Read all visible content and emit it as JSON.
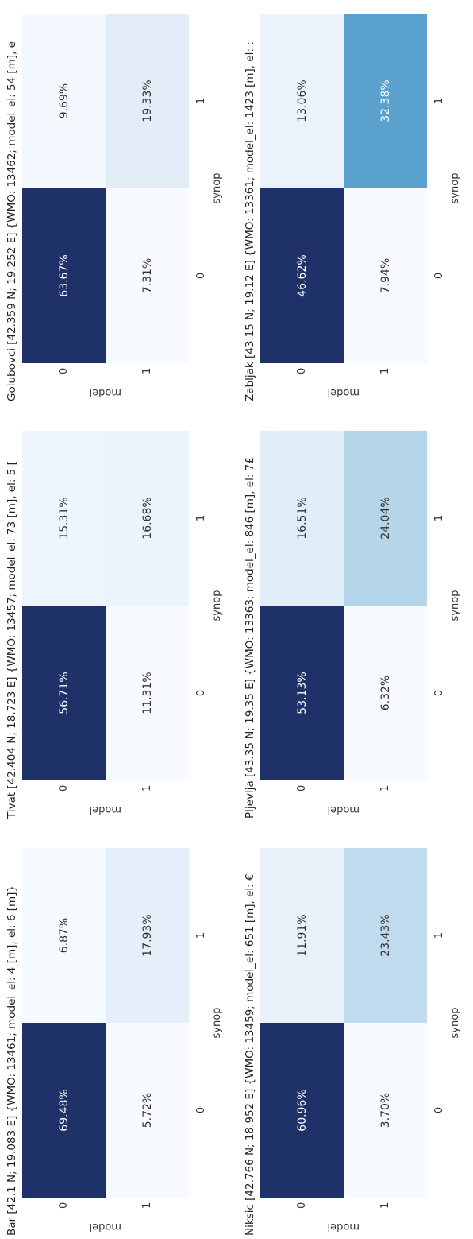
{
  "chart_data": [
    {
      "type": "heatmap",
      "title": "Bar  [42.1 N; 19.083 E]  {WMO: 13461; model_el: 4 [m], el: 6 [m]}",
      "xlabel": "synop",
      "ylabel": "model",
      "x_categories": [
        "0",
        "1"
      ],
      "y_categories": [
        "0",
        "1"
      ],
      "values": [
        [
          69.48,
          6.87
        ],
        [
          5.72,
          17.93
        ]
      ],
      "labels": [
        [
          "69.48%",
          "6.87%"
        ],
        [
          "5.72%",
          "17.93%"
        ]
      ]
    },
    {
      "type": "heatmap",
      "title": "Tivat  [42.404 N; 18.723 E]  {WMO: 13457; model_el: 73 [m], el: 5 [",
      "xlabel": "synop",
      "ylabel": "model",
      "x_categories": [
        "0",
        "1"
      ],
      "y_categories": [
        "0",
        "1"
      ],
      "values": [
        [
          56.71,
          15.31
        ],
        [
          11.31,
          16.68
        ]
      ],
      "labels": [
        [
          "56.71%",
          "15.31%"
        ],
        [
          "11.31%",
          "16.68%"
        ]
      ]
    },
    {
      "type": "heatmap",
      "title": "Golubovci  [42.359 N; 19.252 E]  {WMO: 13462; model_el: 54 [m], e",
      "xlabel": "synop",
      "ylabel": "model",
      "x_categories": [
        "0",
        "1"
      ],
      "y_categories": [
        "0",
        "1"
      ],
      "values": [
        [
          63.67,
          9.69
        ],
        [
          7.31,
          19.33
        ]
      ],
      "labels": [
        [
          "63.67%",
          "9.69%"
        ],
        [
          "7.31%",
          "19.33%"
        ]
      ]
    },
    {
      "type": "heatmap",
      "title": "Niksic  [42.766 N; 18.952 E]  {WMO: 13459; model_el: 651 [m], el: €",
      "xlabel": "synop",
      "ylabel": "model",
      "x_categories": [
        "0",
        "1"
      ],
      "y_categories": [
        "0",
        "1"
      ],
      "values": [
        [
          60.96,
          11.91
        ],
        [
          3.7,
          23.43
        ]
      ],
      "labels": [
        [
          "60.96%",
          "11.91%"
        ],
        [
          "3.70%",
          "23.43%"
        ]
      ]
    },
    {
      "type": "heatmap",
      "title": "Pljevlja  [43.35 N; 19.35 E]  {WMO: 13363; model_el: 846 [m], el: 7£",
      "xlabel": "synop",
      "ylabel": "model",
      "x_categories": [
        "0",
        "1"
      ],
      "y_categories": [
        "0",
        "1"
      ],
      "values": [
        [
          53.13,
          16.51
        ],
        [
          6.32,
          24.04
        ]
      ],
      "labels": [
        [
          "53.13%",
          "16.51%"
        ],
        [
          "6.32%",
          "24.04%"
        ]
      ]
    },
    {
      "type": "heatmap",
      "title": "Zabljak  [43.15 N; 19.12 E]  {WMO: 13361; model_el: 1423 [m], el: :",
      "xlabel": "synop",
      "ylabel": "model",
      "x_categories": [
        "0",
        "1"
      ],
      "y_categories": [
        "0",
        "1"
      ],
      "values": [
        [
          46.62,
          13.06
        ],
        [
          7.94,
          32.38
        ]
      ],
      "labels": [
        [
          "46.62%",
          "13.06%"
        ],
        [
          "7.94%",
          "32.38%"
        ]
      ]
    }
  ]
}
